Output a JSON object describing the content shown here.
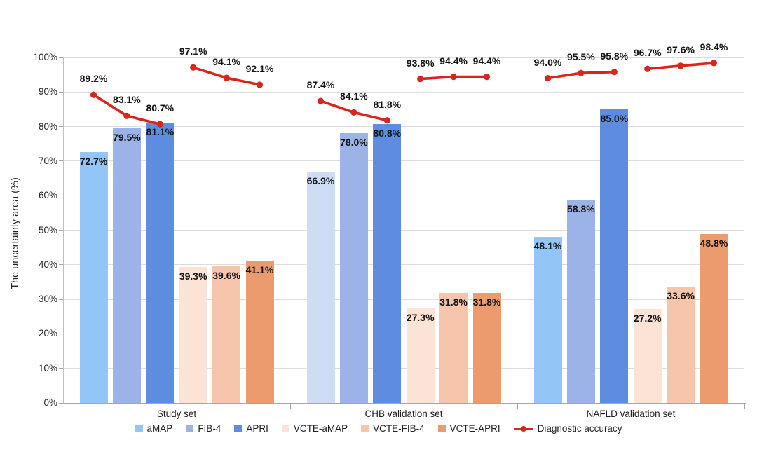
{
  "chart_data": {
    "type": "bar",
    "title": "",
    "ylabel": "The uncertainty area (%)",
    "ylim": [
      0,
      100
    ],
    "y_tick_step": 10,
    "y_tick_labels": [
      "0%",
      "10%",
      "20%",
      "30%",
      "40%",
      "50%",
      "60%",
      "70%",
      "80%",
      "90%",
      "100%"
    ],
    "categories": [
      "Study set",
      "CHB validation set",
      "NAFLD validation set"
    ],
    "bar_series": [
      {
        "name": "aMAP",
        "color": "#93C5F7",
        "values": [
          72.7,
          66.9,
          48.1
        ]
      },
      {
        "name": "FIB-4",
        "color": "#9CB3E8",
        "values": [
          79.5,
          78.0,
          58.8
        ]
      },
      {
        "name": "APRI",
        "color": "#5E8DDF",
        "values": [
          81.1,
          80.8,
          85.0
        ]
      },
      {
        "name": "VCTE-aMAP",
        "color": "#FBE3D5",
        "values": [
          39.3,
          27.3,
          27.2
        ]
      },
      {
        "name": "VCTE-FIB-4",
        "color": "#F7C5AB",
        "values": [
          39.6,
          31.8,
          33.6
        ]
      },
      {
        "name": "VCTE-APRI",
        "color": "#EC9B6F",
        "values": [
          41.1,
          31.8,
          48.8
        ]
      }
    ],
    "color_overrides": [
      {
        "series": "aMAP",
        "category_index": 1,
        "color": "#CEDDF4"
      }
    ],
    "line_series": {
      "name": "Diagnostic accuracy",
      "color": "#D9251C",
      "values_by_category": [
        [
          89.2,
          83.1,
          80.7,
          97.1,
          94.1,
          92.1
        ],
        [
          87.4,
          84.1,
          81.8,
          93.8,
          94.4,
          94.4
        ],
        [
          94.0,
          95.5,
          95.8,
          96.7,
          97.6,
          98.4
        ]
      ],
      "segments": [
        [
          0,
          1,
          2
        ],
        [
          3,
          4,
          5
        ]
      ]
    },
    "legend_position": "bottom",
    "grid": "horizontal",
    "value_label_suffix": "%",
    "colors": {
      "grid": "#DCDCDC",
      "axis": "#A6A6A6",
      "label_text": "#141414"
    }
  }
}
